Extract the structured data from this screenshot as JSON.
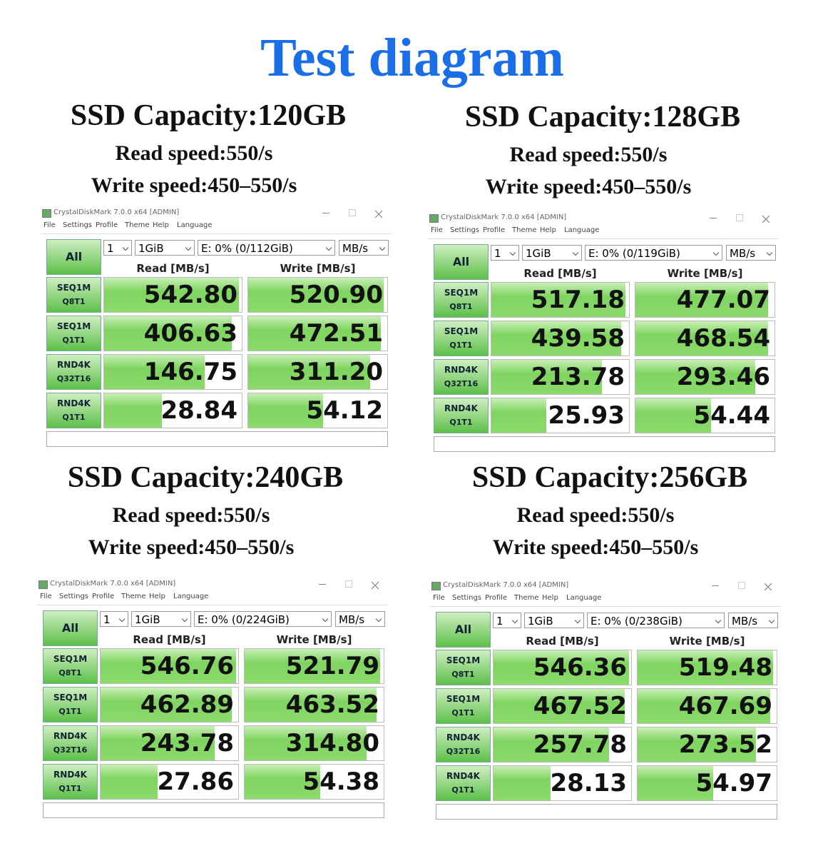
{
  "title": "Test diagram",
  "panels": [
    {
      "capacity": "SSD Capacity:120GB",
      "read_speed": "Read speed:550/s",
      "write_speed": "Write speed:450–550/s",
      "window": {
        "title": "CrystalDiskMark 7.0.0 x64 [ADMIN]",
        "menu": [
          "File",
          "Settings",
          "Profile",
          "Theme",
          "Help",
          "Language"
        ],
        "all": "All",
        "count": "1",
        "size": "1GiB",
        "drive": "E: 0% (0/112GiB)",
        "unit": "MB/s",
        "read_header": "Read [MB/s]",
        "write_header": "Write [MB/s]",
        "rows": [
          {
            "test": [
              "SEQ1M",
              "Q8T1"
            ],
            "read": "542.80",
            "write": "520.90"
          },
          {
            "test": [
              "SEQ1M",
              "Q1T1"
            ],
            "read": "406.63",
            "write": "472.51"
          },
          {
            "test": [
              "RND4K",
              "Q32T16"
            ],
            "read": "146.75",
            "write": "311.20"
          },
          {
            "test": [
              "RND4K",
              "Q1T1"
            ],
            "read": "28.84",
            "write": "54.12"
          }
        ]
      }
    },
    {
      "capacity": "SSD Capacity:128GB",
      "read_speed": "Read speed:550/s",
      "write_speed": "Write speed:450–550/s",
      "window": {
        "title": "CrystalDiskMark 7.0.0 x64 [ADMIN]",
        "menu": [
          "File",
          "Settings",
          "Profile",
          "Theme",
          "Help",
          "Language"
        ],
        "all": "All",
        "count": "1",
        "size": "1GiB",
        "drive": "E: 0% (0/119GiB)",
        "unit": "MB/s",
        "read_header": "Read [MB/s]",
        "write_header": "Write [MB/s]",
        "rows": [
          {
            "test": [
              "SEQ1M",
              "Q8T1"
            ],
            "read": "517.18",
            "write": "477.07"
          },
          {
            "test": [
              "SEQ1M",
              "Q1T1"
            ],
            "read": "439.58",
            "write": "468.54"
          },
          {
            "test": [
              "RND4K",
              "Q32T16"
            ],
            "read": "213.78",
            "write": "293.46"
          },
          {
            "test": [
              "RND4K",
              "Q1T1"
            ],
            "read": "25.93",
            "write": "54.44"
          }
        ]
      }
    },
    {
      "capacity": "SSD Capacity:240GB",
      "read_speed": "Read speed:550/s",
      "write_speed": "Write speed:450–550/s",
      "window": {
        "title": "CrystalDiskMark 7.0.0 x64 [ADMIN]",
        "menu": [
          "File",
          "Settings",
          "Profile",
          "Theme",
          "Help",
          "Language"
        ],
        "all": "All",
        "count": "1",
        "size": "1GiB",
        "drive": "E: 0% (0/224GiB)",
        "unit": "MB/s",
        "read_header": "Read [MB/s]",
        "write_header": "Write [MB/s]",
        "rows": [
          {
            "test": [
              "SEQ1M",
              "Q8T1"
            ],
            "read": "546.76",
            "write": "521.79"
          },
          {
            "test": [
              "SEQ1M",
              "Q1T1"
            ],
            "read": "462.89",
            "write": "463.52"
          },
          {
            "test": [
              "RND4K",
              "Q32T16"
            ],
            "read": "243.78",
            "write": "314.80"
          },
          {
            "test": [
              "RND4K",
              "Q1T1"
            ],
            "read": "27.86",
            "write": "54.38"
          }
        ]
      }
    },
    {
      "capacity": "SSD Capacity:256GB",
      "read_speed": "Read speed:550/s",
      "write_speed": "Write speed:450–550/s",
      "window": {
        "title": "CrystalDiskMark 7.0.0 x64 [ADMIN]",
        "menu": [
          "File",
          "Settings",
          "Profile",
          "Theme",
          "Help",
          "Language"
        ],
        "all": "All",
        "count": "1",
        "size": "1GiB",
        "drive": "E: 0% (0/238GiB)",
        "unit": "MB/s",
        "read_header": "Read [MB/s]",
        "write_header": "Write [MB/s]",
        "rows": [
          {
            "test": [
              "SEQ1M",
              "Q8T1"
            ],
            "read": "546.36",
            "write": "519.48"
          },
          {
            "test": [
              "SEQ1M",
              "Q1T1"
            ],
            "read": "467.52",
            "write": "467.69"
          },
          {
            "test": [
              "RND4K",
              "Q32T16"
            ],
            "read": "257.78",
            "write": "273.52"
          },
          {
            "test": [
              "RND4K",
              "Q1T1"
            ],
            "read": "28.13",
            "write": "54.97"
          }
        ]
      }
    }
  ]
}
